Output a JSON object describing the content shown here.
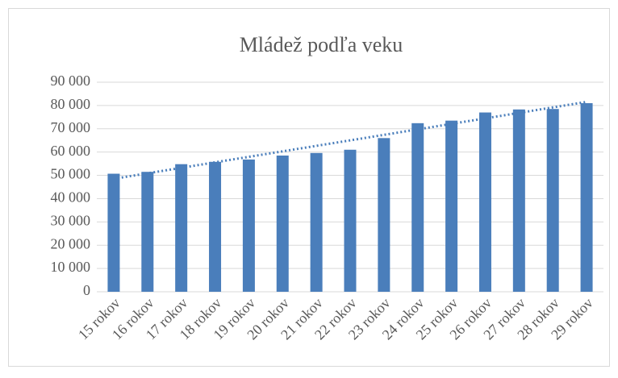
{
  "chart_data": {
    "type": "bar",
    "title": "Mládež podľa veku",
    "categories": [
      "15 rokov",
      "16 rokov",
      "17 rokov",
      "18 rokov",
      "19 rokov",
      "20 rokov",
      "21 rokov",
      "22 rokov",
      "23 rokov",
      "24 rokov",
      "25 rokov",
      "26 rokov",
      "27 rokov",
      "28 rokov",
      "29 rokov"
    ],
    "values": [
      50700,
      51500,
      54800,
      55800,
      56800,
      58500,
      59600,
      61000,
      66000,
      72400,
      73500,
      77000,
      78300,
      78500,
      81000
    ],
    "color": "#4a7ebb",
    "trendline": "linear",
    "ylim": [
      0,
      90000
    ],
    "yticks": [
      0,
      {
        "value": 10000,
        "label": "10 000"
      },
      {
        "value": 20000,
        "label": "20 000"
      },
      {
        "value": 30000,
        "label": "30 000"
      },
      {
        "value": 40000,
        "label": "40 000"
      },
      {
        "value": 50000,
        "label": "50 000"
      },
      {
        "value": 60000,
        "label": "60 000"
      },
      {
        "value": 70000,
        "label": "70 000"
      },
      {
        "value": 80000,
        "label": "80 000"
      },
      {
        "value": 90000,
        "label": "90 000"
      }
    ],
    "grid": true
  }
}
